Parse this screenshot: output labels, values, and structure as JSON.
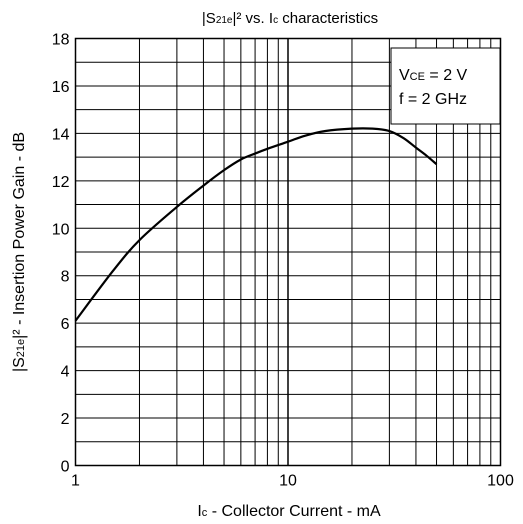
{
  "chart_data": {
    "type": "line",
    "title": "|S21e|² vs. Ic characteristics",
    "title_parts": {
      "a": "|S",
      "b": "21e",
      "c": "|² vs. I",
      "d": "c",
      "e": " characteristics"
    },
    "xlabel": "Ic - Collector Current - mA",
    "xlabel_parts": {
      "a": "I",
      "b": "c",
      "c": " - Collector Current - mA"
    },
    "ylabel": "|S21e|² - Insertion Power Gain - dB",
    "ylabel_parts": {
      "a": "|S",
      "b": "21e",
      "c": "|² - Insertion Power Gain - dB"
    },
    "x_scale": "log",
    "xlim": [
      1,
      100
    ],
    "ylim": [
      0,
      18
    ],
    "x_tick_labels": [
      "1",
      "10",
      "100"
    ],
    "y_tick_labels": [
      "0",
      "2",
      "4",
      "6",
      "8",
      "10",
      "12",
      "14",
      "16",
      "18"
    ],
    "grid": true,
    "annotation": {
      "line1": {
        "a": "V",
        "b": "CE",
        "c": " = 2 V"
      },
      "line2": "f = 2 GHz"
    },
    "series": [
      {
        "x": [
          1,
          1.5,
          2,
          3,
          4,
          5,
          6,
          7,
          8,
          10,
          12,
          15,
          20,
          25,
          30,
          35,
          40,
          45,
          50
        ],
        "y": [
          6.1,
          8.2,
          9.5,
          10.9,
          11.8,
          12.45,
          12.9,
          13.15,
          13.35,
          13.65,
          13.9,
          14.1,
          14.2,
          14.2,
          14.1,
          13.8,
          13.4,
          13.05,
          12.7
        ]
      }
    ]
  }
}
